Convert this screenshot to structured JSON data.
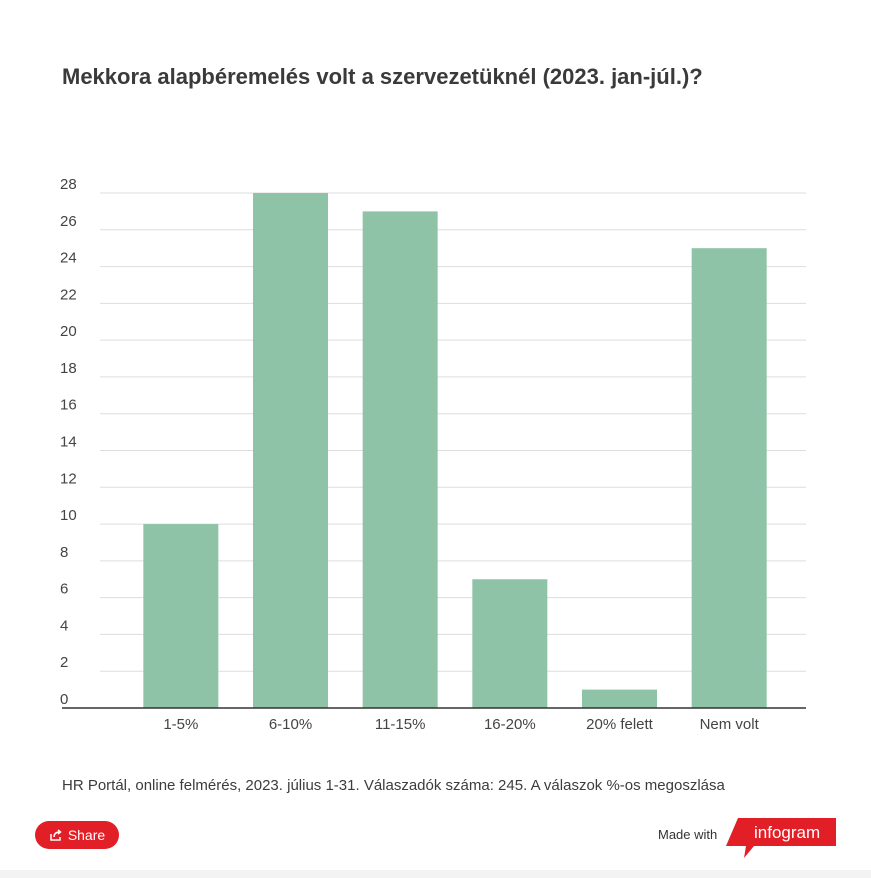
{
  "title": "Mekkora alapbéremelés volt a szervezetüknél (2023. jan-júl.)?",
  "chart_data": {
    "type": "bar",
    "categories": [
      "1-5%",
      "6-10%",
      "11-15%",
      "16-20%",
      "20% felett",
      "Nem volt"
    ],
    "values": [
      10,
      28,
      27,
      7,
      1,
      25
    ],
    "ylim": [
      0,
      28
    ],
    "yticks": [
      0,
      2,
      4,
      6,
      8,
      10,
      12,
      14,
      16,
      18,
      20,
      22,
      24,
      26,
      28
    ],
    "grid": true,
    "bar_color": "#8fc3a7"
  },
  "source_note": "HR Portál, online felmérés, 2023. július 1-31. Válaszadók száma: 245. A válaszok %-os megoszlása",
  "footer": {
    "share_label": "Share",
    "share_icon": "share-icon",
    "made_with_label": "Made with",
    "brand_label": "infogram",
    "brand_color": "#e21f26"
  }
}
